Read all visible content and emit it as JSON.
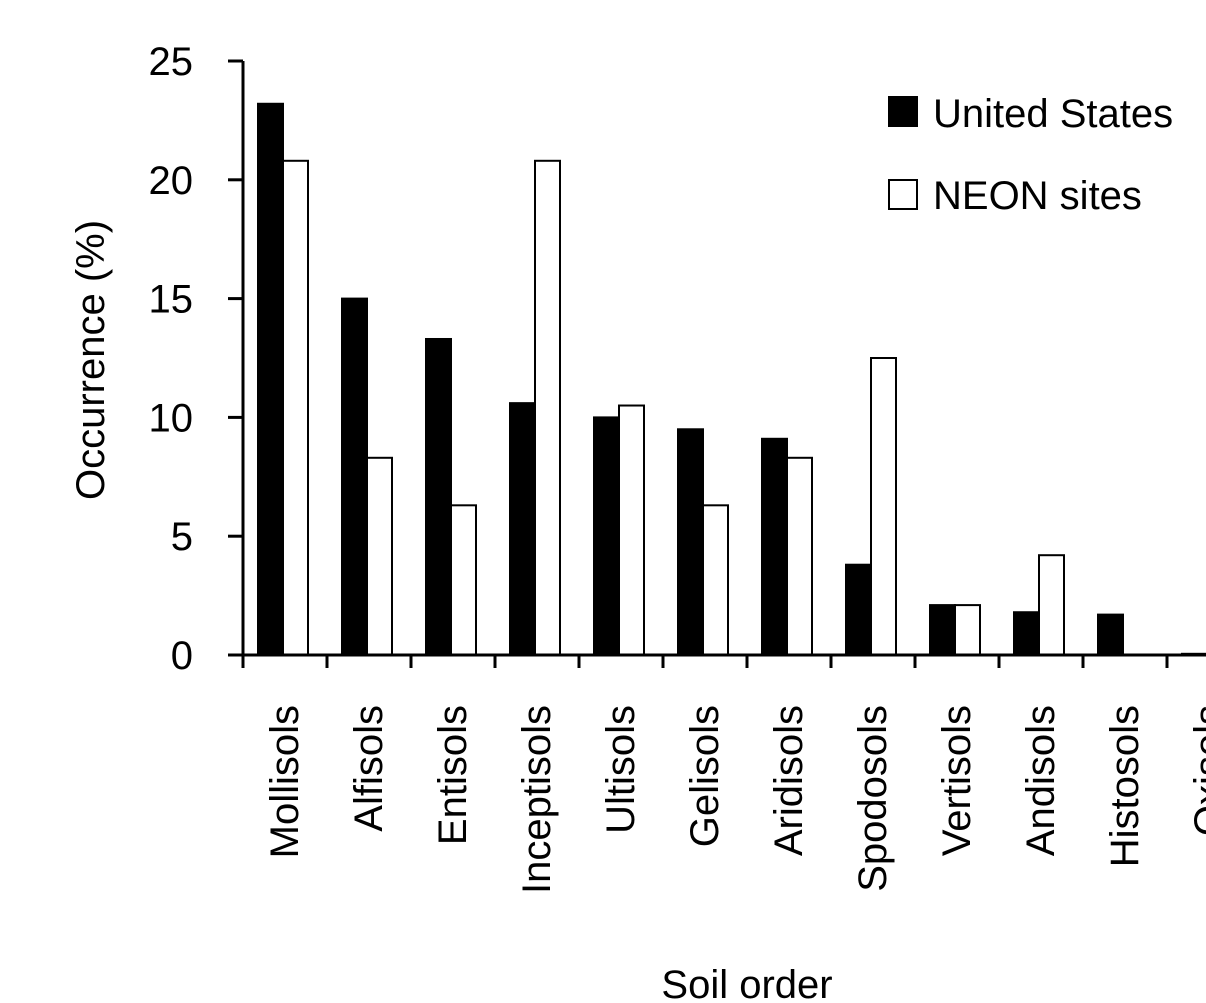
{
  "chart_data": {
    "type": "bar",
    "title": "",
    "xlabel": "Soil order",
    "ylabel": "Occurrence (%)",
    "ylim": [
      0,
      25
    ],
    "yticks": [
      0,
      5,
      10,
      15,
      20,
      25
    ],
    "grid": false,
    "legend_position": "top-right",
    "categories": [
      "Mollisols",
      "Alfisols",
      "Entisols",
      "Inceptisols",
      "Ultisols",
      "Gelisols",
      "Aridisols",
      "Spodosols",
      "Vertisols",
      "Andisols",
      "Histosols",
      "Oxisols"
    ],
    "series": [
      {
        "name": "United States",
        "color": "#000000",
        "values": [
          23.2,
          15.0,
          13.3,
          10.6,
          10.0,
          9.5,
          9.1,
          3.8,
          2.1,
          1.8,
          1.7,
          0.05
        ]
      },
      {
        "name": "NEON sites",
        "color": "#ffffff",
        "values": [
          20.8,
          8.3,
          6.3,
          20.8,
          10.5,
          6.3,
          8.3,
          12.5,
          2.1,
          4.2,
          0.0,
          0.0
        ]
      }
    ]
  }
}
